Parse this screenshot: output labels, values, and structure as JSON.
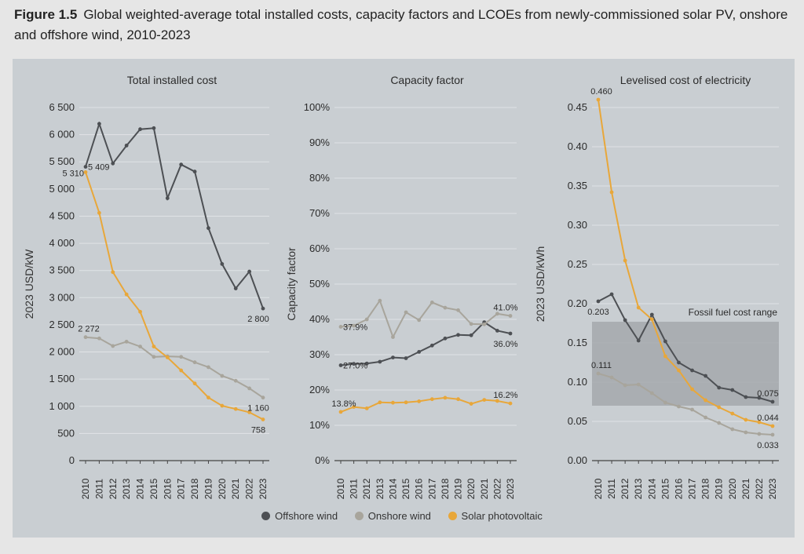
{
  "figure": {
    "number": "Figure 1.5",
    "title": "Global weighted-average total installed costs, capacity factors and LCOEs from newly-commissioned solar PV, onshore and offshore wind, 2010-2023"
  },
  "colors": {
    "offshore": "#4d5054",
    "onshore": "#a8a59c",
    "solar": "#e8a73a",
    "fossil_band": "#a5a8ad",
    "grid": "#e0e3e6"
  },
  "legend": [
    {
      "label": "Offshore wind",
      "color": "#4d5054"
    },
    {
      "label": "Onshore wind",
      "color": "#a8a59c"
    },
    {
      "label": "Solar photovoltaic",
      "color": "#e8a73a"
    }
  ],
  "chart_data": [
    {
      "type": "line",
      "title": "Total installed cost",
      "ylabel": "2023 USD/kW",
      "ylim": [
        0,
        6500
      ],
      "yticks": [
        0,
        500,
        1000,
        1500,
        2000,
        2500,
        3000,
        3500,
        4000,
        4500,
        5000,
        5500,
        6000,
        6500
      ],
      "ytick_labels": [
        "0",
        "500",
        "1 000",
        "1 500",
        "2 000",
        "2 500",
        "3 000",
        "3 500",
        "4 000",
        "4 500",
        "5 000",
        "5 500",
        "6 000",
        "6 500"
      ],
      "categories": [
        "2010",
        "2011",
        "2012",
        "2013",
        "2014",
        "2015",
        "2016",
        "2017",
        "2018",
        "2019",
        "2020",
        "2021",
        "2022",
        "2023"
      ],
      "grid": true,
      "series": [
        {
          "name": "Offshore wind",
          "key": "offshore",
          "values": [
            5409,
            6200,
            5470,
            5800,
            6100,
            6120,
            4830,
            5450,
            5320,
            4280,
            3620,
            3170,
            3480,
            2800
          ]
        },
        {
          "name": "Onshore wind",
          "key": "onshore",
          "values": [
            2272,
            2250,
            2110,
            2190,
            2100,
            1910,
            1920,
            1910,
            1810,
            1720,
            1560,
            1470,
            1330,
            1160
          ]
        },
        {
          "name": "Solar photovoltaic",
          "key": "solar",
          "values": [
            5310,
            4560,
            3470,
            3060,
            2740,
            2100,
            1900,
            1660,
            1420,
            1160,
            1010,
            950,
            890,
            758
          ]
        }
      ],
      "annotations": [
        {
          "text": "5 310",
          "series": "solar",
          "index": 0,
          "pos": "left"
        },
        {
          "text": "5 409",
          "series": "offshore",
          "index": 0,
          "pos": "right"
        },
        {
          "text": "2 272",
          "series": "onshore",
          "index": 0,
          "pos": "above"
        },
        {
          "text": "2 800",
          "series": "offshore",
          "index": 13,
          "pos": "below"
        },
        {
          "text": "1 160",
          "series": "onshore",
          "index": 13,
          "pos": "below"
        },
        {
          "text": "758",
          "series": "solar",
          "index": 13,
          "pos": "below"
        }
      ]
    },
    {
      "type": "line",
      "title": "Capacity factor",
      "ylabel": "Capacity factor",
      "ylim": [
        0,
        100
      ],
      "yticks": [
        0,
        10,
        20,
        30,
        40,
        50,
        60,
        70,
        80,
        90,
        100
      ],
      "ytick_labels": [
        "0%",
        "10%",
        "20%",
        "30%",
        "40%",
        "50%",
        "60%",
        "70%",
        "80%",
        "90%",
        "100%"
      ],
      "categories": [
        "2010",
        "2011",
        "2012",
        "2013",
        "2014",
        "2015",
        "2016",
        "2017",
        "2018",
        "2019",
        "2020",
        "2021",
        "2022",
        "2023"
      ],
      "grid": true,
      "series": [
        {
          "name": "Offshore wind",
          "key": "offshore",
          "values": [
            27.0,
            27.4,
            27.5,
            28.0,
            29.2,
            29.0,
            30.8,
            32.6,
            34.6,
            35.6,
            35.5,
            39.2,
            36.8,
            36.0
          ]
        },
        {
          "name": "Onshore wind",
          "key": "onshore",
          "values": [
            37.9,
            38.2,
            40.0,
            45.3,
            35.0,
            42.0,
            39.8,
            44.8,
            43.3,
            42.6,
            38.7,
            38.6,
            41.6,
            41.0
          ]
        },
        {
          "name": "Solar photovoltaic",
          "key": "solar",
          "values": [
            13.8,
            15.2,
            14.8,
            16.5,
            16.4,
            16.5,
            16.8,
            17.4,
            17.8,
            17.4,
            16.1,
            17.2,
            16.9,
            16.2
          ]
        }
      ],
      "annotations": [
        {
          "text": "37.9%",
          "series": "onshore",
          "index": 0,
          "pos": "right"
        },
        {
          "text": "27.0%",
          "series": "offshore",
          "index": 0,
          "pos": "right"
        },
        {
          "text": "13.8%",
          "series": "solar",
          "index": 0,
          "pos": "above"
        },
        {
          "text": "41.0%",
          "series": "onshore",
          "index": 13,
          "pos": "above"
        },
        {
          "text": "36.0%",
          "series": "offshore",
          "index": 13,
          "pos": "below"
        },
        {
          "text": "16.2%",
          "series": "solar",
          "index": 13,
          "pos": "above"
        }
      ]
    },
    {
      "type": "line",
      "title": "Levelised cost of electricity",
      "ylabel": "2023 USD/kWh",
      "ylim": [
        0,
        0.45
      ],
      "yticks": [
        0,
        0.05,
        0.1,
        0.15,
        0.2,
        0.25,
        0.3,
        0.35,
        0.4,
        0.45
      ],
      "ytick_labels": [
        "0.00",
        "0.05",
        "0.10",
        "0.15",
        "0.20",
        "0.25",
        "0.30",
        "0.35",
        "0.40",
        "0.45"
      ],
      "categories": [
        "2010",
        "2011",
        "2012",
        "2013",
        "2014",
        "2015",
        "2016",
        "2017",
        "2018",
        "2019",
        "2020",
        "2021",
        "2022",
        "2023"
      ],
      "grid": true,
      "band": {
        "label": "Fossil fuel cost range",
        "from": 0.07,
        "to": 0.177
      },
      "series": [
        {
          "name": "Offshore wind",
          "key": "offshore",
          "values": [
            0.203,
            0.212,
            0.179,
            0.153,
            0.186,
            0.152,
            0.125,
            0.115,
            0.108,
            0.093,
            0.09,
            0.081,
            0.08,
            0.075
          ]
        },
        {
          "name": "Onshore wind",
          "key": "onshore",
          "values": [
            0.111,
            0.106,
            0.096,
            0.097,
            0.086,
            0.074,
            0.069,
            0.065,
            0.055,
            0.048,
            0.04,
            0.036,
            0.034,
            0.033
          ]
        },
        {
          "name": "Solar photovoltaic",
          "key": "solar",
          "values": [
            0.46,
            0.342,
            0.255,
            0.195,
            0.18,
            0.133,
            0.115,
            0.091,
            0.077,
            0.068,
            0.06,
            0.052,
            0.049,
            0.044
          ]
        }
      ],
      "annotations": [
        {
          "text": "0.460",
          "series": "solar",
          "index": 0,
          "pos": "above"
        },
        {
          "text": "0.203",
          "series": "offshore",
          "index": 0,
          "pos": "below"
        },
        {
          "text": "0.111",
          "series": "onshore",
          "index": 0,
          "pos": "above"
        },
        {
          "text": "0.075",
          "series": "offshore",
          "index": 13,
          "pos": "above"
        },
        {
          "text": "0.044",
          "series": "solar",
          "index": 13,
          "pos": "above"
        },
        {
          "text": "0.033",
          "series": "onshore",
          "index": 13,
          "pos": "below"
        }
      ]
    }
  ]
}
